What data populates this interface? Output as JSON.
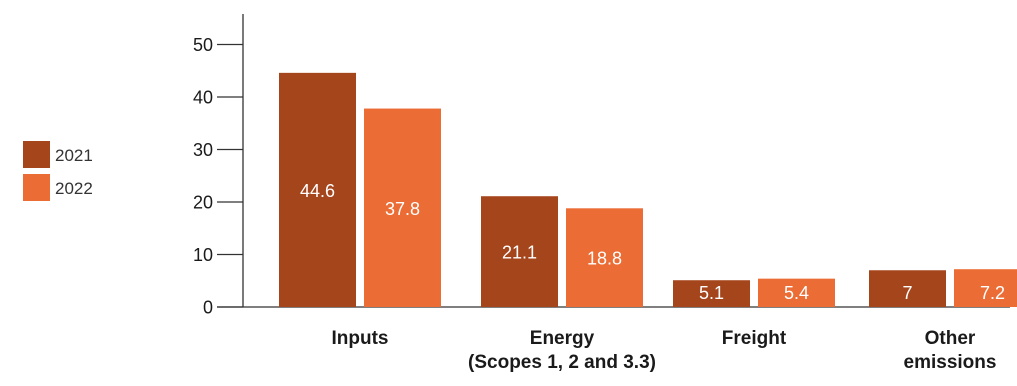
{
  "chart_data": {
    "type": "bar",
    "title": "",
    "xlabel": "",
    "ylabel": "",
    "ylim": [
      0,
      50
    ],
    "yticks": [
      0,
      10,
      20,
      30,
      40,
      50
    ],
    "grid": false,
    "legend_position": "left",
    "categories": [
      [
        "Inputs"
      ],
      [
        "Energy",
        "(Scopes 1, 2 and 3.3)"
      ],
      [
        "Freight"
      ],
      [
        "Other",
        "emissions"
      ]
    ],
    "series": [
      {
        "name": "2021",
        "color": "#a5451c",
        "values": [
          44.6,
          21.1,
          5.1,
          7
        ],
        "labels": [
          "44.6",
          "21.1",
          "5.1",
          "7"
        ]
      },
      {
        "name": "2022",
        "color": "#eb6d35",
        "values": [
          37.8,
          18.8,
          5.4,
          7.2
        ],
        "labels": [
          "37.8",
          "18.8",
          "5.4",
          "7.2"
        ]
      }
    ],
    "bar_label_color": "#ffffff",
    "axis_color": "#333333",
    "text_color": "#1a1a1a"
  }
}
